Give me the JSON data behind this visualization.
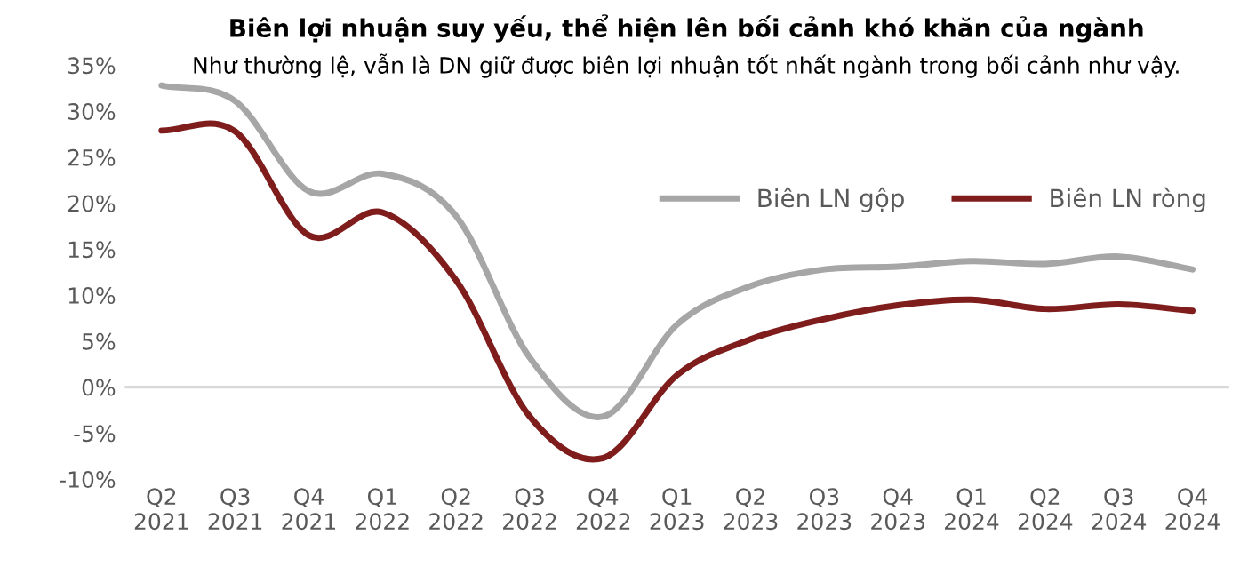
{
  "chart_data": {
    "type": "line",
    "title": "Biên lợi nhuận suy yếu, thể hiện lên bối cảnh khó khăn của ngành",
    "subtitle": "Như thường lệ, vẫn là DN giữ được biên lợi nhuận tốt nhất ngành trong bối cảnh như vậy.",
    "categories": [
      "Q2\n2021",
      "Q3\n2021",
      "Q4\n2021",
      "Q1\n2022",
      "Q2\n2022",
      "Q3\n2022",
      "Q4\n2022",
      "Q1\n2023",
      "Q2\n2023",
      "Q3\n2023",
      "Q4\n2023",
      "Q1\n2024",
      "Q2\n2024",
      "Q3\n2024",
      "Q4\n2024"
    ],
    "series": [
      {
        "name": "Biên LN gộp",
        "color": "#a6a6a6",
        "values": [
          32.8,
          31.1,
          21.3,
          23.2,
          18.6,
          3.2,
          -3.2,
          6.8,
          11.0,
          12.8,
          13.1,
          13.7,
          13.4,
          14.2,
          12.8
        ]
      },
      {
        "name": "Biên LN ròng",
        "color": "#7f1d1d",
        "values": [
          27.9,
          27.8,
          16.5,
          19.0,
          11.6,
          -3.2,
          -7.7,
          1.3,
          5.2,
          7.4,
          8.9,
          9.5,
          8.5,
          9.0,
          8.3
        ]
      }
    ],
    "ylim": [
      -10,
      35
    ],
    "yticks": [
      {
        "value": -10,
        "label": "-10%"
      },
      {
        "value": -5,
        "label": "-5%"
      },
      {
        "value": 0,
        "label": "0%"
      },
      {
        "value": 5,
        "label": "5%"
      },
      {
        "value": 10,
        "label": "10%"
      },
      {
        "value": 15,
        "label": "15%"
      },
      {
        "value": 20,
        "label": "20%"
      },
      {
        "value": 25,
        "label": "25%"
      },
      {
        "value": 30,
        "label": "30%"
      },
      {
        "value": 35,
        "label": "35%"
      }
    ],
    "legend": "center right",
    "line_style": "solid",
    "marker": "none"
  }
}
